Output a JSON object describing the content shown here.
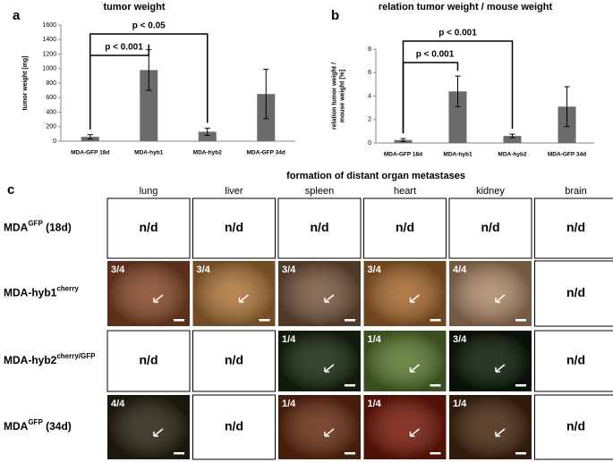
{
  "chart_data": [
    {
      "type": "bar",
      "panel": "a",
      "title": "tumor weight",
      "ylabel": [
        "tumor weight [mg]"
      ],
      "categories": [
        "MDA-GFP 18d",
        "MDA-hyb1",
        "MDA-hyb2",
        "MDA-GFP 34d"
      ],
      "values": [
        60,
        980,
        130,
        650
      ],
      "errors": [
        30,
        280,
        50,
        340
      ],
      "color": "#6b6b6b",
      "ylim": [
        0,
        1600
      ],
      "yticks": [
        0,
        200,
        400,
        600,
        800,
        1000,
        1200,
        1400,
        1600
      ],
      "annotations": [
        "p < 0.001",
        "p < 0.05"
      ]
    },
    {
      "type": "bar",
      "panel": "b",
      "title": "relation tumor weight / mouse weight",
      "ylabel": [
        "relation tumor weight /",
        "mouse weight [%]"
      ],
      "categories": [
        "MDA-GFP 18d",
        "MDA-hyb1",
        "MDA-hyb2",
        "MDA-GFP 34d"
      ],
      "values": [
        0.25,
        4.4,
        0.6,
        3.1
      ],
      "errors": [
        0.12,
        1.3,
        0.15,
        1.7
      ],
      "color": "#6b6b6b",
      "ylim": [
        0,
        8
      ],
      "yticks": [
        0,
        2,
        4,
        6,
        8
      ],
      "annotations": [
        "p < 0.001",
        "p < 0.001"
      ]
    }
  ],
  "panel_c": {
    "panel": "c",
    "title": "formation of distant organ metastases",
    "columns": [
      "lung",
      "liver",
      "spleen",
      "heart",
      "kidney",
      "brain"
    ],
    "rows": [
      {
        "label": {
          "base": "MDA",
          "sup": "GFP",
          "suffix": " (18d)"
        },
        "cells": [
          {
            "text": "n/d"
          },
          {
            "text": "n/d"
          },
          {
            "text": "n/d"
          },
          {
            "text": "n/d"
          },
          {
            "text": "n/d"
          },
          {
            "text": "n/d"
          }
        ]
      },
      {
        "label": {
          "base": "MDA-hyb1",
          "sup": "cherry",
          "suffix": ""
        },
        "cells": [
          {
            "text": "3/4",
            "color": "#8a4a2a"
          },
          {
            "text": "3/4",
            "color": "#b0783a"
          },
          {
            "text": "3/4",
            "color": "#7a5a40"
          },
          {
            "text": "3/4",
            "color": "#a86a30"
          },
          {
            "text": "4/4",
            "color": "#b08a6a"
          },
          {
            "text": "n/d"
          }
        ]
      },
      {
        "label": {
          "base": "MDA-hyb2",
          "sup": "cherry/GFP",
          "suffix": ""
        },
        "cells": [
          {
            "text": "n/d"
          },
          {
            "text": "n/d"
          },
          {
            "text": "1/4",
            "color": "#1a2a10"
          },
          {
            "text": "1/4",
            "color": "#5a7a30"
          },
          {
            "text": "3/4",
            "color": "#0c1a08"
          },
          {
            "text": "n/d"
          }
        ]
      },
      {
        "label": {
          "base": "MDA",
          "sup": "GFP",
          "suffix": " (34d)"
        },
        "cells": [
          {
            "text": "4/4",
            "color": "#2a2412"
          },
          {
            "text": "n/d"
          },
          {
            "text": "1/4",
            "color": "#6a2e12"
          },
          {
            "text": "1/4",
            "color": "#7a1a0a"
          },
          {
            "text": "1/4",
            "color": "#4a2a12"
          },
          {
            "text": "n/d"
          }
        ]
      }
    ]
  }
}
